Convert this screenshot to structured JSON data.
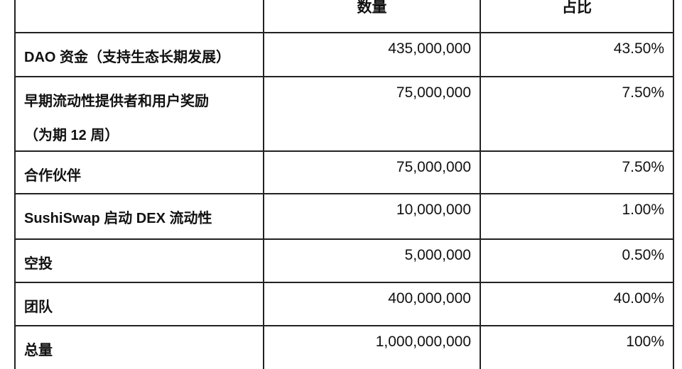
{
  "table": {
    "headers": [
      "",
      "数量",
      "占比"
    ],
    "rows": [
      {
        "label": "DAO 资金（支持生态长期发展）",
        "label2": "",
        "amount": "435,000,000",
        "share": "43.50%"
      },
      {
        "label": "早期流动性提供者和用户奖励",
        "label2": "（为期 12 周）",
        "amount": "75,000,000",
        "share": "7.50%"
      },
      {
        "label": "合作伙伴",
        "label2": "",
        "amount": "75,000,000",
        "share": "7.50%"
      },
      {
        "label": "SushiSwap 启动 DEX 流动性",
        "label2": "",
        "amount": "10,000,000",
        "share": "1.00%"
      },
      {
        "label": "空投",
        "label2": "",
        "amount": "5,000,000",
        "share": "0.50%"
      },
      {
        "label": "团队",
        "label2": "",
        "amount": "400,000,000",
        "share": "40.00%"
      },
      {
        "label": "总量",
        "label2": "",
        "amount": "1,000,000,000",
        "share": "100%"
      }
    ]
  }
}
